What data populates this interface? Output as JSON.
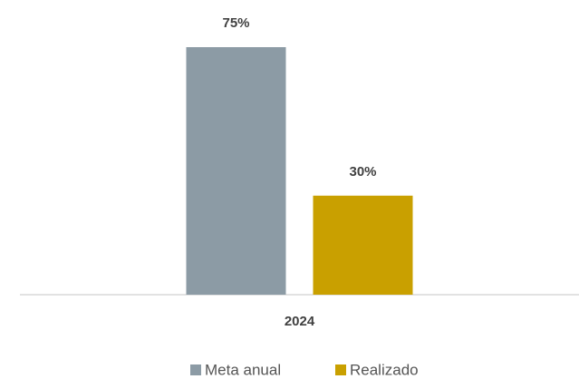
{
  "chart_data": {
    "type": "bar",
    "categories": [
      "2024"
    ],
    "series": [
      {
        "name": "Meta anual",
        "color": "#8c9ba5",
        "values": [
          75
        ],
        "value_labels": [
          "75%"
        ]
      },
      {
        "name": "Realizado",
        "color": "#c9a000",
        "values": [
          30
        ],
        "value_labels": [
          "30%"
        ]
      }
    ],
    "ylim": [
      0,
      75
    ],
    "legend": "bottom"
  }
}
